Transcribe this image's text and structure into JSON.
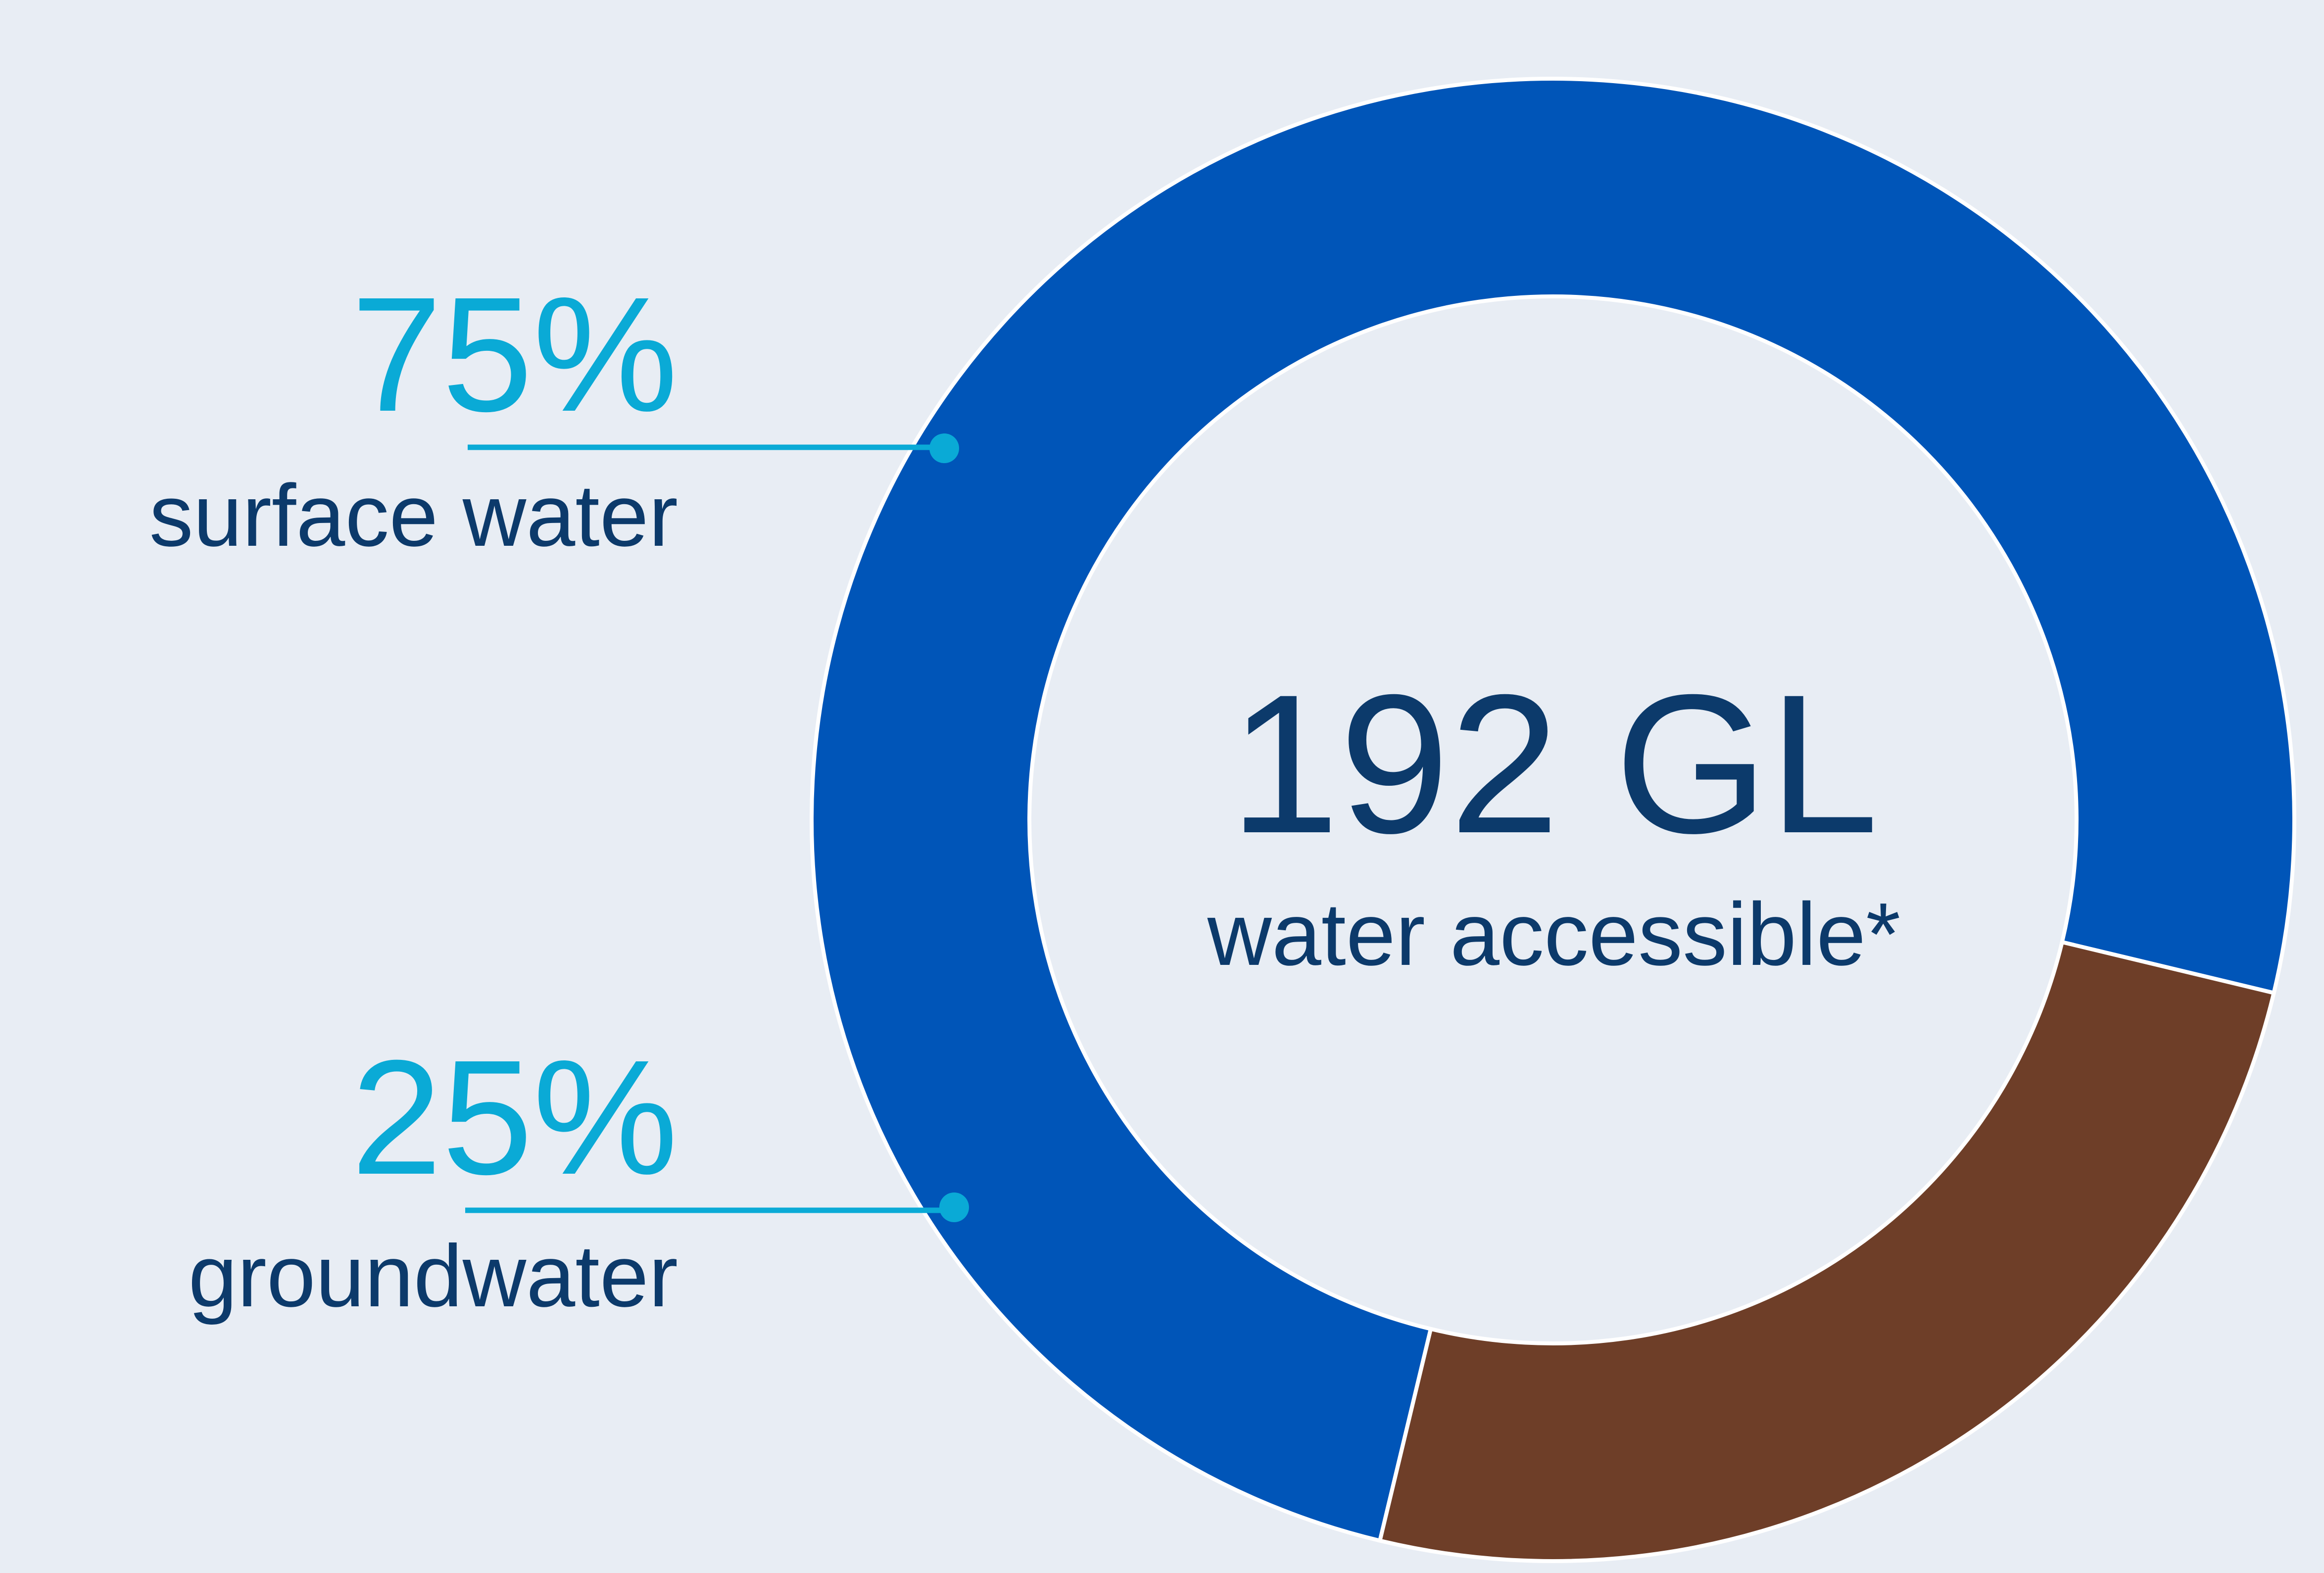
{
  "chart_data": {
    "type": "pie",
    "variant": "donut",
    "slices": [
      {
        "label": "surface water",
        "value": 75,
        "value_label": "75%",
        "color": "#0055b8"
      },
      {
        "label": "groundwater",
        "value": 25,
        "value_label": "25%",
        "color": "#6e3e28"
      }
    ],
    "center_value": "192 GL",
    "center_label": "water accessible*",
    "colors": {
      "background": "#e8edf4",
      "percent_text": "#0aaad6",
      "label_text": "#0c3a6b",
      "leader_line": "#0aaad6",
      "slice_border": "#ffffff"
    }
  }
}
